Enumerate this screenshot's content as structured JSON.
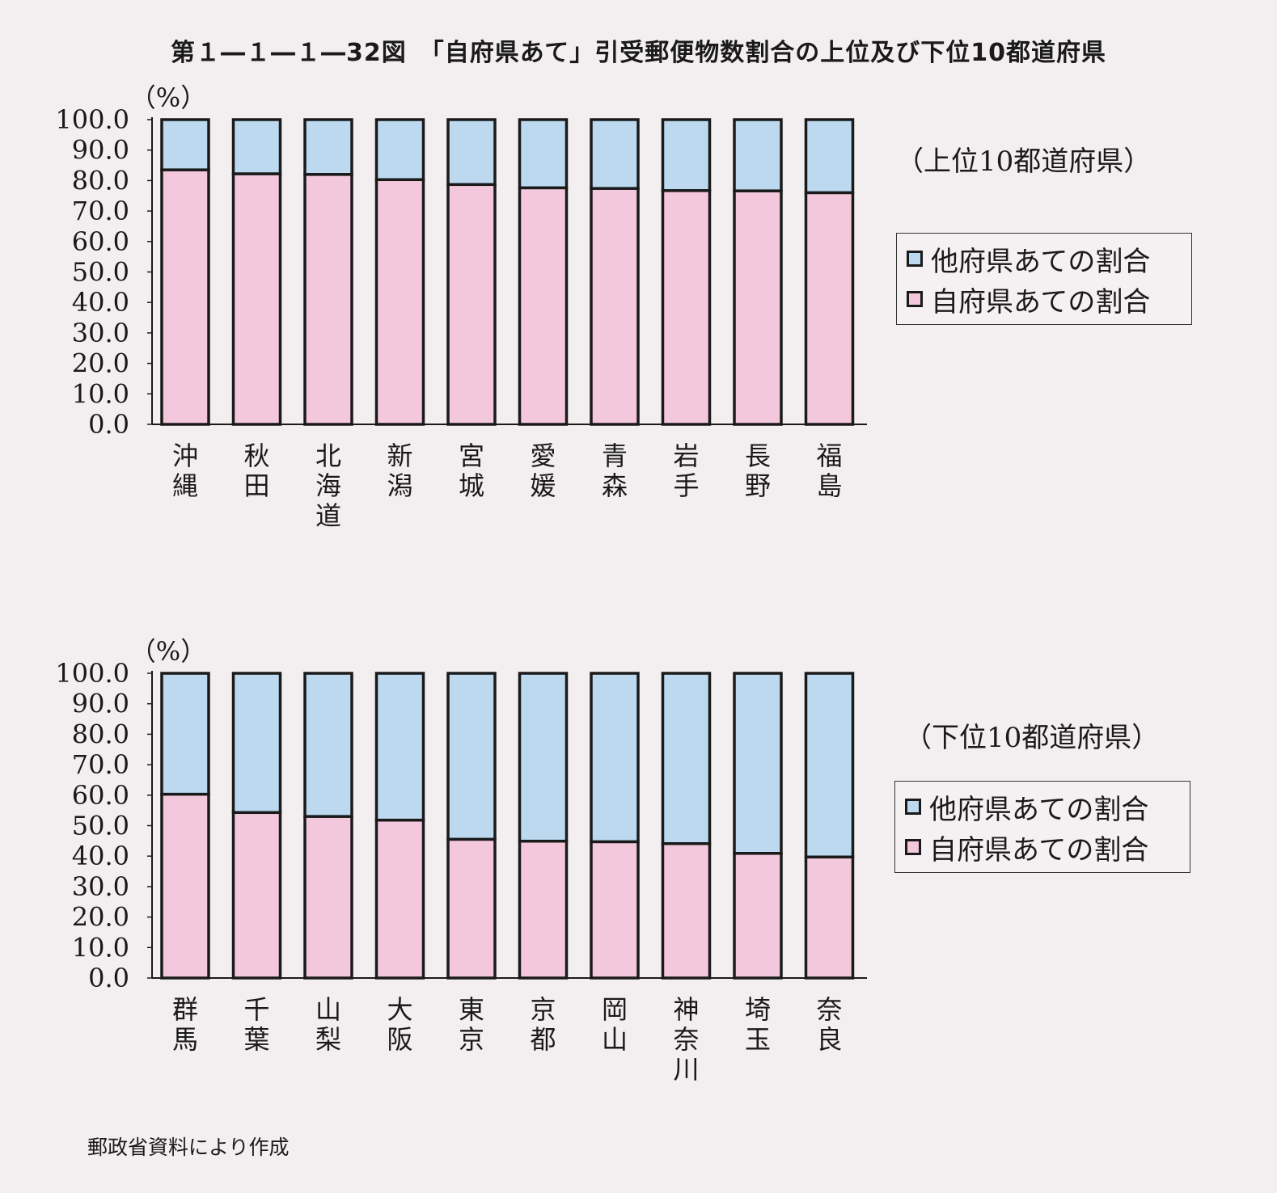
{
  "title": "第１―１―１―32図　「自府県あて」引受郵便物数割合の上位及び下位10都道府県",
  "source": "郵政省資料により作成",
  "colors": {
    "other_pref": "#bcd9f0",
    "own_pref": "#f4c8dc",
    "outline": "#1a1a1a",
    "background": "#f3eff0"
  },
  "chart_data": [
    {
      "type": "bar",
      "stacked": true,
      "subtitle": "（上位10都道府県）",
      "ylabel": "（%）",
      "ylim": [
        0,
        100
      ],
      "yticks": [
        "0.0",
        "10.0",
        "20.0",
        "30.0",
        "40.0",
        "50.0",
        "60.0",
        "70.0",
        "80.0",
        "90.0",
        "100.0"
      ],
      "categories": [
        "沖縄",
        "秋田",
        "北海道",
        "新潟",
        "宮城",
        "愛媛",
        "青森",
        "岩手",
        "長野",
        "福島"
      ],
      "series": [
        {
          "name": "自府県あての割合",
          "color_key": "own_pref",
          "values": [
            83.5,
            82.2,
            82.0,
            80.3,
            78.7,
            77.6,
            77.4,
            76.7,
            76.6,
            76.0
          ]
        },
        {
          "name": "他府県あての割合",
          "color_key": "other_pref",
          "values": [
            16.5,
            17.8,
            18.0,
            19.7,
            21.3,
            22.4,
            22.6,
            23.3,
            23.4,
            24.0
          ]
        }
      ],
      "legend_position": "right",
      "grid": false
    },
    {
      "type": "bar",
      "stacked": true,
      "subtitle": "（下位10都道府県）",
      "ylabel": "（%）",
      "ylim": [
        0,
        100
      ],
      "yticks": [
        "0.0",
        "10.0",
        "20.0",
        "30.0",
        "40.0",
        "50.0",
        "60.0",
        "70.0",
        "80.0",
        "90.0",
        "100.0"
      ],
      "categories": [
        "群馬",
        "千葉",
        "山梨",
        "大阪",
        "東京",
        "京都",
        "岡山",
        "神奈川",
        "埼玉",
        "奈良"
      ],
      "series": [
        {
          "name": "自府県あての割合",
          "color_key": "own_pref",
          "values": [
            60.3,
            54.3,
            53.0,
            51.8,
            45.5,
            44.9,
            44.7,
            44.1,
            40.9,
            39.7
          ]
        },
        {
          "name": "他府県あての割合",
          "color_key": "other_pref",
          "values": [
            39.7,
            45.7,
            47.0,
            48.2,
            54.5,
            55.1,
            55.3,
            55.9,
            59.1,
            60.3
          ]
        }
      ],
      "legend_position": "right",
      "grid": false
    }
  ]
}
